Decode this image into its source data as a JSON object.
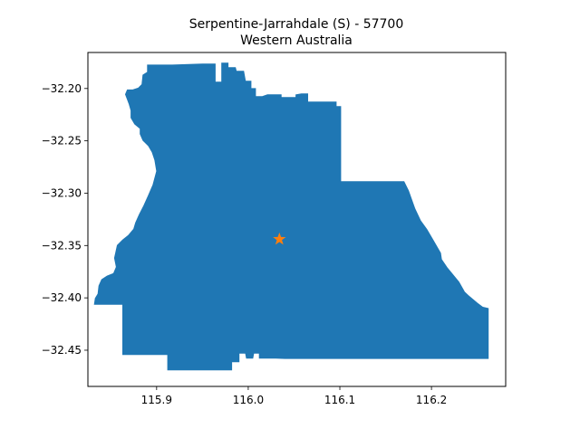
{
  "title": {
    "line1": "Serpentine-Jarrahdale (S) - 57700",
    "line2": "Western Australia"
  },
  "colors": {
    "region_fill": "#1f77b4",
    "marker": "#ff7f0e",
    "axes": "#000000",
    "background": "#ffffff"
  },
  "axes": {
    "xlim": [
      115.825,
      116.281
    ],
    "ylim": [
      -32.4846,
      -32.1656
    ],
    "x_ticks": [
      {
        "value": 115.9,
        "label": "115.9"
      },
      {
        "value": 116.0,
        "label": "116.0"
      },
      {
        "value": 116.1,
        "label": "116.1"
      },
      {
        "value": 116.2,
        "label": "116.2"
      }
    ],
    "y_ticks": [
      {
        "value": -32.2,
        "label": "−32.20"
      },
      {
        "value": -32.25,
        "label": "−32.25"
      },
      {
        "value": -32.3,
        "label": "−32.30"
      },
      {
        "value": -32.35,
        "label": "−32.35"
      },
      {
        "value": -32.4,
        "label": "−32.40"
      },
      {
        "value": -32.45,
        "label": "−32.45"
      }
    ]
  },
  "chart_data": {
    "type": "map",
    "title": "Serpentine-Jarrahdale (S) - 57700\nWestern Australia",
    "xlim": [
      115.825,
      116.281
    ],
    "ylim": [
      -32.4846,
      -32.1656
    ],
    "marker": {
      "shape": "star",
      "lon": 116.034,
      "lat": -32.344
    },
    "region_outline": [
      [
        115.917,
        -32.1775
      ],
      [
        115.95,
        -32.1766
      ],
      [
        115.964,
        -32.1766
      ],
      [
        115.964,
        -32.1939
      ],
      [
        115.971,
        -32.1939
      ],
      [
        115.971,
        -32.1757
      ],
      [
        115.978,
        -32.1757
      ],
      [
        115.978,
        -32.18
      ],
      [
        115.986,
        -32.18
      ],
      [
        115.987,
        -32.1835
      ],
      [
        115.995,
        -32.1835
      ],
      [
        115.997,
        -32.193
      ],
      [
        116.003,
        -32.193
      ],
      [
        116.003,
        -32.2
      ],
      [
        116.008,
        -32.2
      ],
      [
        116.008,
        -32.2077
      ],
      [
        116.015,
        -32.2077
      ],
      [
        116.021,
        -32.206
      ],
      [
        116.036,
        -32.206
      ],
      [
        116.036,
        -32.2086
      ],
      [
        116.052,
        -32.2086
      ],
      [
        116.052,
        -32.206
      ],
      [
        116.058,
        -32.2051
      ],
      [
        116.065,
        -32.2051
      ],
      [
        116.065,
        -32.2128
      ],
      [
        116.096,
        -32.2128
      ],
      [
        116.096,
        -32.2171
      ],
      [
        116.101,
        -32.2171
      ],
      [
        116.101,
        -32.2889
      ],
      [
        116.17,
        -32.2889
      ],
      [
        116.175,
        -32.2977
      ],
      [
        116.182,
        -32.3149
      ],
      [
        116.188,
        -32.3261
      ],
      [
        116.195,
        -32.3347
      ],
      [
        116.202,
        -32.3451
      ],
      [
        116.21,
        -32.3572
      ],
      [
        116.211,
        -32.3632
      ],
      [
        116.217,
        -32.371
      ],
      [
        116.23,
        -32.3848
      ],
      [
        116.236,
        -32.3943
      ],
      [
        116.24,
        -32.3976
      ],
      [
        116.25,
        -32.405
      ],
      [
        116.256,
        -32.4089
      ],
      [
        116.262,
        -32.4101
      ],
      [
        116.262,
        -32.458
      ],
      [
        116.04,
        -32.458
      ],
      [
        116.03,
        -32.4576
      ],
      [
        116.012,
        -32.4576
      ],
      [
        116.012,
        -32.453
      ],
      [
        116.006,
        -32.453
      ],
      [
        116.005,
        -32.4576
      ],
      [
        115.998,
        -32.4576
      ],
      [
        115.997,
        -32.453
      ],
      [
        115.99,
        -32.453
      ],
      [
        115.99,
        -32.4611
      ],
      [
        115.982,
        -32.4611
      ],
      [
        115.982,
        -32.4689
      ],
      [
        115.912,
        -32.4689
      ],
      [
        115.912,
        -32.4542
      ],
      [
        115.863,
        -32.4542
      ],
      [
        115.863,
        -32.4063
      ],
      [
        115.832,
        -32.4063
      ],
      [
        115.833,
        -32.4004
      ],
      [
        115.836,
        -32.3962
      ],
      [
        115.837,
        -32.3885
      ],
      [
        115.84,
        -32.3825
      ],
      [
        115.846,
        -32.3791
      ],
      [
        115.853,
        -32.3766
      ],
      [
        115.856,
        -32.3705
      ],
      [
        115.854,
        -32.3619
      ],
      [
        115.857,
        -32.3498
      ],
      [
        115.863,
        -32.3446
      ],
      [
        115.869,
        -32.3404
      ],
      [
        115.875,
        -32.3343
      ],
      [
        115.877,
        -32.3283
      ],
      [
        115.881,
        -32.3205
      ],
      [
        115.886,
        -32.3119
      ],
      [
        115.891,
        -32.3023
      ],
      [
        115.896,
        -32.2919
      ],
      [
        115.9,
        -32.2789
      ],
      [
        115.898,
        -32.2685
      ],
      [
        115.895,
        -32.2607
      ],
      [
        115.891,
        -32.2547
      ],
      [
        115.885,
        -32.2495
      ],
      [
        115.882,
        -32.2435
      ],
      [
        115.882,
        -32.2383
      ],
      [
        115.876,
        -32.234
      ],
      [
        115.872,
        -32.228
      ],
      [
        115.872,
        -32.221
      ],
      [
        115.87,
        -32.215
      ],
      [
        115.866,
        -32.2055
      ],
      [
        115.868,
        -32.2013
      ],
      [
        115.874,
        -32.2013
      ],
      [
        115.88,
        -32.1996
      ],
      [
        115.884,
        -32.1961
      ],
      [
        115.885,
        -32.187
      ],
      [
        115.89,
        -32.1844
      ],
      [
        115.89,
        -32.1775
      ]
    ]
  }
}
